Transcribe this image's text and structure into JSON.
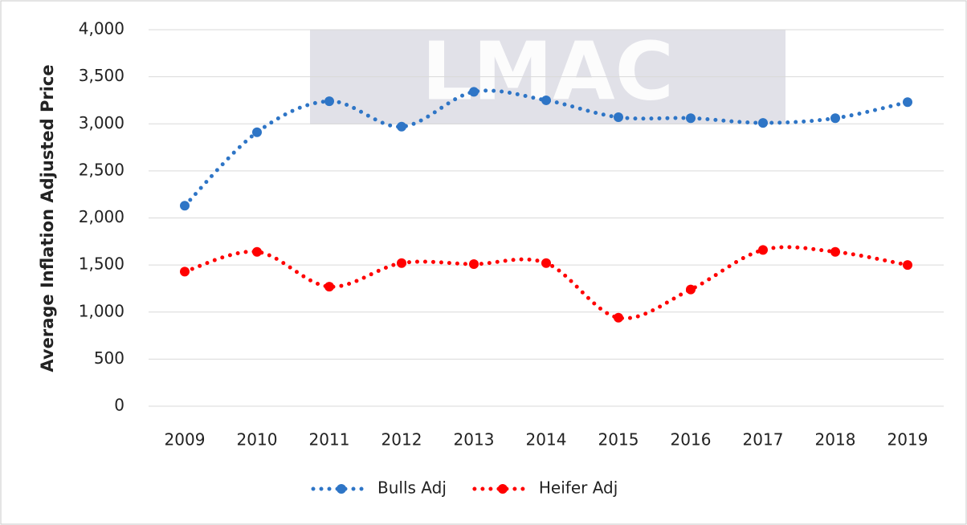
{
  "chart_data": {
    "type": "line",
    "y_label": "Average Inflation Adjusted Price",
    "watermark": "LMAC",
    "categories": [
      "2009",
      "2010",
      "2011",
      "2012",
      "2013",
      "2014",
      "2015",
      "2016",
      "2017",
      "2018",
      "2019"
    ],
    "series": [
      {
        "name": "Bulls Adj",
        "color": "#2e75c6",
        "values": [
          2130,
          2910,
          3240,
          2970,
          3340,
          3250,
          3070,
          3060,
          3010,
          3060,
          3230
        ]
      },
      {
        "name": "Heifer Adj",
        "color": "#ff0000",
        "values": [
          1430,
          1640,
          1270,
          1520,
          1510,
          1520,
          940,
          1240,
          1660,
          1640,
          1500
        ]
      }
    ],
    "ylim": [
      0,
      4000
    ],
    "yticks": [
      0,
      500,
      {
        "value": 1000,
        "label": "1,000"
      },
      {
        "value": 1500,
        "label": "1,500"
      },
      {
        "value": 2000,
        "label": "2,000"
      },
      {
        "value": 2500,
        "label": "2,500"
      },
      {
        "value": 3000,
        "label": "3,000"
      },
      {
        "value": 3500,
        "label": "3,500"
      },
      {
        "value": 4000,
        "label": "4,000"
      }
    ],
    "grid": true,
    "smooth": true,
    "legend": "bottom"
  }
}
